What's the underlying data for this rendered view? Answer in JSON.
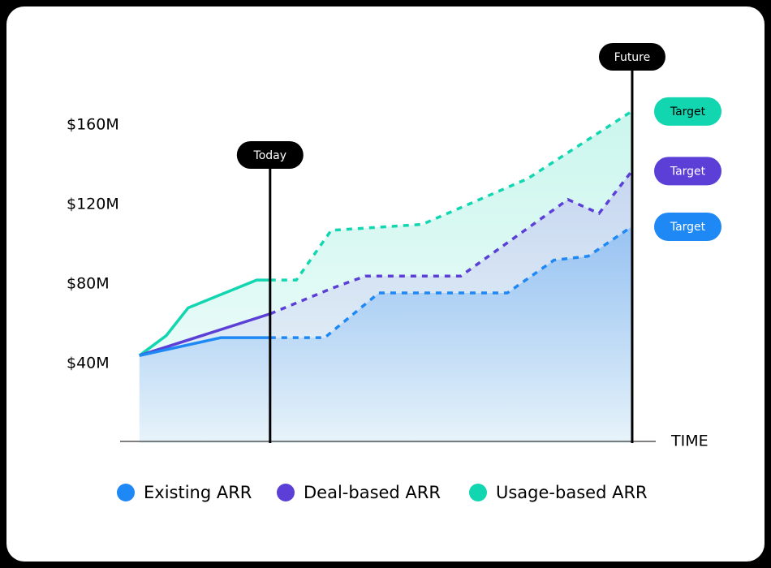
{
  "chart_data": {
    "type": "line",
    "x_axis_label": "TIME",
    "xlim": [
      0,
      100
    ],
    "ylim": [
      0,
      200
    ],
    "yticks": [
      {
        "value": 40,
        "label": "$40M"
      },
      {
        "value": 80,
        "label": "$80M"
      },
      {
        "value": 120,
        "label": "$120M"
      },
      {
        "value": 160,
        "label": "$160M"
      }
    ],
    "markers": [
      {
        "label": "Today",
        "x": 28
      },
      {
        "label": "Future",
        "x": 95.6
      }
    ],
    "series": [
      {
        "name": "Usage-based ARR",
        "color": "#12d6b0",
        "target_label": "Target",
        "x": [
          3.6,
          8.6,
          12.7,
          25.5,
          28,
          32.9,
          39.4,
          56.4,
          76.1,
          95.6
        ],
        "values": [
          44,
          54,
          68,
          82,
          82,
          82,
          107,
          110,
          133,
          167
        ]
      },
      {
        "name": "Deal-based ARR",
        "color": "#5b3fd6",
        "target_label": "Target",
        "x": [
          3.6,
          28,
          39.7,
          45.8,
          63.6,
          83.6,
          89.4,
          95.6
        ],
        "values": [
          44,
          65,
          78,
          84,
          84,
          122.5,
          115.5,
          137
        ]
      },
      {
        "name": "Existing ARR",
        "color": "#1e88f5",
        "target_label": "Target",
        "x": [
          3.6,
          18.8,
          28,
          38.2,
          48.3,
          72.3,
          81,
          87.4,
          95.6
        ],
        "values": [
          44,
          53,
          53,
          53,
          75.5,
          75.5,
          92,
          94,
          109
        ]
      }
    ]
  }
}
